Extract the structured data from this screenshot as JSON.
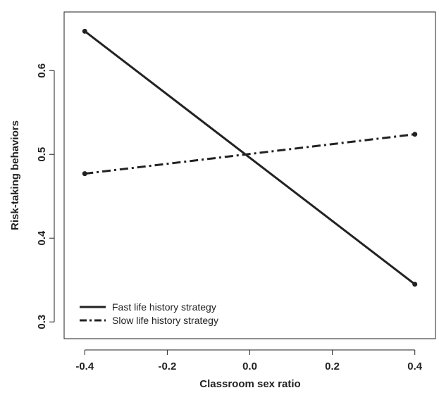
{
  "chart_data": {
    "type": "line",
    "title": "",
    "xlabel": "Classroom sex ratio",
    "ylabel": "Risk-taking behaviors",
    "xlim": [
      -0.45,
      0.45
    ],
    "ylim": [
      0.28,
      0.67
    ],
    "x_ticks": [
      -0.4,
      -0.2,
      0.0,
      0.2,
      0.4
    ],
    "x_tick_labels": [
      "-0.4",
      "-0.2",
      "0.0",
      "0.2",
      "0.4"
    ],
    "y_ticks": [
      0.3,
      0.4,
      0.5,
      0.6
    ],
    "y_tick_labels": [
      "0.3",
      "0.4",
      "0.5",
      "0.6"
    ],
    "grid": false,
    "legend_position": "bottom-left",
    "x": [
      -0.4,
      0.4
    ],
    "series": [
      {
        "name": "Fast life history strategy",
        "values": [
          0.647,
          0.345
        ],
        "line_style": "solid",
        "color": "#222222"
      },
      {
        "name": "Slow life history strategy",
        "values": [
          0.477,
          0.524
        ],
        "line_style": "dashdot",
        "color": "#222222"
      }
    ]
  }
}
